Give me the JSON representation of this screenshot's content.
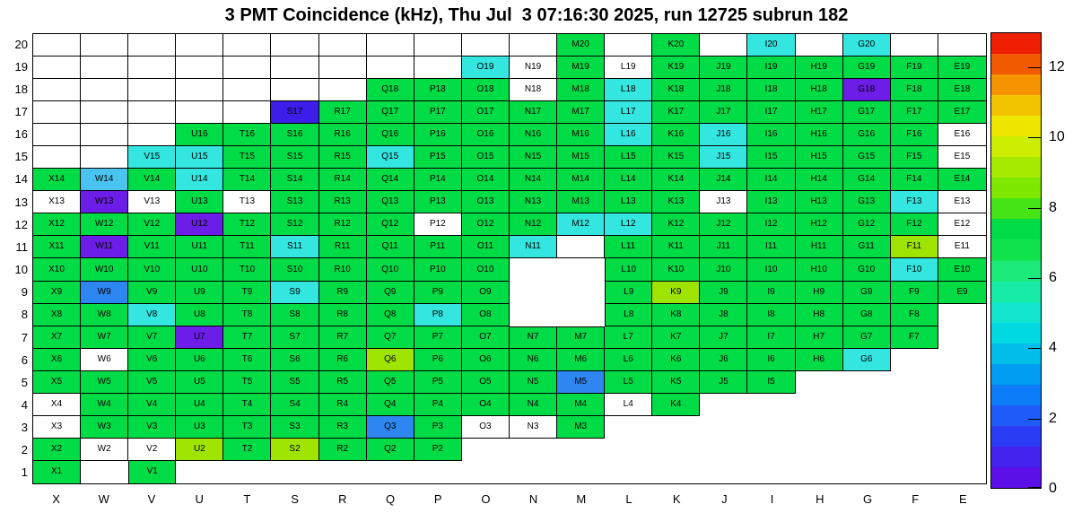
{
  "chart_data": {
    "type": "heatmap",
    "title": "3 PMT Coincidence (kHz), Thu Jul  3 07:16:30 2025, run 12725 subrun 182",
    "x_categories": [
      "X",
      "W",
      "V",
      "U",
      "T",
      "S",
      "R",
      "Q",
      "P",
      "O",
      "N",
      "M",
      "L",
      "K",
      "J",
      "I",
      "H",
      "G",
      "F",
      "E"
    ],
    "y_categories": [
      20,
      19,
      18,
      17,
      16,
      15,
      14,
      13,
      12,
      11,
      10,
      9,
      8,
      7,
      6,
      5,
      4,
      3,
      2,
      1
    ],
    "zlabel": "kHz",
    "zlim": [
      0,
      13
    ],
    "legend_position": "right",
    "colorbar": {
      "ticks": [
        0,
        2,
        4,
        6,
        8,
        10,
        12
      ],
      "max": 13,
      "palette_bottom_to_top": [
        "#5a10e6",
        "#4422ee",
        "#2a3cf4",
        "#1e5bf8",
        "#0d7cf8",
        "#009df2",
        "#00bdea",
        "#00d8e2",
        "#12e6cf",
        "#18eaa8",
        "#1bea7a",
        "#10e24d",
        "#00dc46",
        "#45e414",
        "#7fe800",
        "#a5ea00",
        "#cdee00",
        "#eee800",
        "#f2c400",
        "#f49200",
        "#f25a00",
        "#ee1e00"
      ]
    },
    "color_classes": {
      "g": {
        "color": "#00dc46",
        "approx_value_khz": 7
      },
      "y": {
        "color": "#9fe400",
        "approx_value_khz": 9
      },
      "c": {
        "color": "#33e6e0",
        "approx_value_khz": 4.5
      },
      "lb": {
        "color": "#49c4f0",
        "approx_value_khz": 3.5
      },
      "b": {
        "color": "#2e86f0",
        "approx_value_khz": 2.5
      },
      "i": {
        "color": "#3c1ee8",
        "approx_value_khz": 1.5
      },
      "p": {
        "color": "#6d1de8",
        "approx_value_khz": 1
      },
      "w": {
        "color": "#ffffff",
        "approx_value_khz": 0
      },
      "e": {
        "color": "#ffffff",
        "approx_value_khz": null
      }
    },
    "grid": [
      [
        "e",
        "e",
        "e",
        "e",
        "e",
        "e",
        "e",
        "e",
        "e",
        "e",
        "e",
        "g",
        "e",
        "g",
        "e",
        "c",
        "e",
        "c",
        "e",
        "e"
      ],
      [
        "e",
        "e",
        "e",
        "e",
        "e",
        "e",
        "e",
        "e",
        "e",
        "c",
        "w",
        "g",
        "w",
        "g",
        "g",
        "g",
        "g",
        "g",
        "g",
        "g"
      ],
      [
        "e",
        "e",
        "e",
        "e",
        "e",
        "e",
        "e",
        "g",
        "g",
        "g",
        "w",
        "g",
        "c",
        "g",
        "g",
        "g",
        "g",
        "p",
        "g",
        "g"
      ],
      [
        "e",
        "e",
        "e",
        "e",
        "e",
        "i",
        "g",
        "g",
        "g",
        "g",
        "g",
        "g",
        "c",
        "g",
        "g",
        "g",
        "g",
        "g",
        "g",
        "g"
      ],
      [
        "e",
        "e",
        "e",
        "g",
        "g",
        "g",
        "g",
        "g",
        "g",
        "g",
        "g",
        "g",
        "c",
        "g",
        "c",
        "g",
        "g",
        "g",
        "g",
        "w"
      ],
      [
        "e",
        "e",
        "c",
        "c",
        "g",
        "g",
        "g",
        "c",
        "g",
        "g",
        "g",
        "g",
        "g",
        "g",
        "c",
        "g",
        "g",
        "g",
        "g",
        "w"
      ],
      [
        "g",
        "lb",
        "g",
        "c",
        "g",
        "g",
        "g",
        "g",
        "g",
        "g",
        "g",
        "g",
        "g",
        "g",
        "g",
        "g",
        "g",
        "g",
        "g",
        "g"
      ],
      [
        "w",
        "p",
        "w",
        "g",
        "w",
        "g",
        "g",
        "g",
        "g",
        "g",
        "g",
        "g",
        "g",
        "g",
        "w",
        "g",
        "g",
        "g",
        "c",
        "w"
      ],
      [
        "g",
        "g",
        "g",
        "p",
        "g",
        "g",
        "g",
        "g",
        "w",
        "g",
        "g",
        "c",
        "c",
        "g",
        "g",
        "g",
        "g",
        "g",
        "g",
        "w"
      ],
      [
        "g",
        "p",
        "g",
        "g",
        "g",
        "c",
        "g",
        "g",
        "g",
        "g",
        "c",
        "e",
        "g",
        "g",
        "g",
        "g",
        "g",
        "g",
        "y",
        "w"
      ],
      [
        "g",
        "g",
        "g",
        "g",
        "g",
        "g",
        "g",
        "g",
        "g",
        "g",
        null,
        null,
        "g",
        "g",
        "g",
        "g",
        "g",
        "g",
        "c",
        "g"
      ],
      [
        "g",
        "b",
        "g",
        "g",
        "g",
        "c",
        "g",
        "g",
        "g",
        "g",
        null,
        null,
        "g",
        "y",
        "g",
        "g",
        "g",
        "g",
        "g",
        "g"
      ],
      [
        "g",
        "g",
        "c",
        "g",
        "g",
        "g",
        "g",
        "g",
        "c",
        "g",
        null,
        null,
        "g",
        "g",
        "g",
        "g",
        "g",
        "g",
        "g",
        null
      ],
      [
        "g",
        "g",
        "g",
        "p",
        "g",
        "g",
        "g",
        "g",
        "g",
        "g",
        "g",
        "g",
        "g",
        "g",
        "g",
        "g",
        "g",
        "g",
        "g",
        null
      ],
      [
        "g",
        "w",
        "g",
        "g",
        "g",
        "g",
        "g",
        "y",
        "g",
        "g",
        "g",
        "g",
        "g",
        "g",
        "g",
        "g",
        "g",
        "c",
        null,
        null
      ],
      [
        "g",
        "g",
        "g",
        "g",
        "g",
        "g",
        "g",
        "g",
        "g",
        "g",
        "g",
        "b",
        "g",
        "g",
        "g",
        "g",
        null,
        null,
        null,
        null
      ],
      [
        "w",
        "g",
        "g",
        "g",
        "g",
        "g",
        "g",
        "g",
        "g",
        "g",
        "g",
        "g",
        "w",
        "g",
        null,
        null,
        null,
        null,
        null,
        null
      ],
      [
        "w",
        "g",
        "g",
        "g",
        "g",
        "g",
        "g",
        "b",
        "g",
        "w",
        "w",
        "g",
        null,
        null,
        null,
        null,
        null,
        null,
        null,
        null
      ],
      [
        "g",
        "w",
        "w",
        "y",
        "g",
        "y",
        "g",
        "g",
        "g",
        null,
        null,
        null,
        null,
        null,
        null,
        null,
        null,
        null,
        null,
        null
      ],
      [
        "g",
        null,
        "g",
        null,
        null,
        null,
        null,
        null,
        null,
        null,
        null,
        null,
        null,
        null,
        null,
        null,
        null,
        null,
        null,
        null
      ]
    ]
  }
}
